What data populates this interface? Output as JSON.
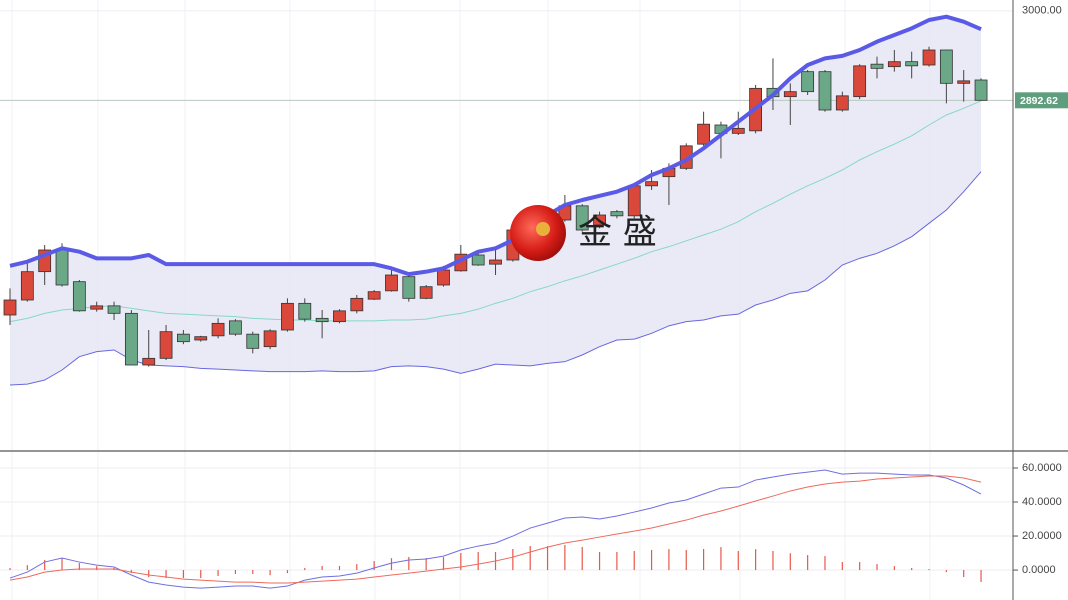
{
  "watermark": "金 盛",
  "chart_data": [
    {
      "type": "candlestick",
      "ylim": [
        2473,
        3013
      ],
      "yticks": [
        {
          "value": 3000,
          "label": "3000.00"
        }
      ],
      "last_price": {
        "value": 2892.62,
        "label": "2892.62"
      },
      "last_price_color": "#5e9e7e",
      "up_color": "#d9483b",
      "down_color": "#6aa888",
      "open": [
        2635,
        2653,
        2687,
        2713,
        2675,
        2642,
        2646,
        2637,
        2575,
        2583,
        2612,
        2605,
        2610,
        2628,
        2612,
        2597,
        2617,
        2649,
        2631,
        2627,
        2640,
        2654,
        2664,
        2681,
        2655,
        2671,
        2688,
        2707,
        2696,
        2701,
        2737,
        2755,
        2749,
        2766,
        2743,
        2759,
        2754,
        2790,
        2801,
        2811,
        2840,
        2863,
        2853,
        2856,
        2907,
        2897,
        2927,
        2927,
        2881,
        2897,
        2936,
        2933,
        2939,
        2935,
        2953,
        2913,
        2917
      ],
      "high": [
        2667,
        2699,
        2719,
        2721,
        2677,
        2651,
        2651,
        2641,
        2617,
        2623,
        2617,
        2610,
        2631,
        2630,
        2615,
        2618,
        2655,
        2655,
        2641,
        2642,
        2659,
        2665,
        2689,
        2685,
        2671,
        2694,
        2719,
        2711,
        2713,
        2742,
        2759,
        2761,
        2779,
        2768,
        2759,
        2761,
        2793,
        2809,
        2817,
        2841,
        2879,
        2867,
        2879,
        2911,
        2943,
        2913,
        2929,
        2929,
        2903,
        2936,
        2945,
        2953,
        2951,
        2957,
        2953,
        2929,
        2919
      ],
      "low": [
        2623,
        2651,
        2671,
        2669,
        2639,
        2639,
        2629,
        2575,
        2573,
        2581,
        2600,
        2603,
        2607,
        2610,
        2589,
        2594,
        2615,
        2627,
        2607,
        2625,
        2637,
        2653,
        2663,
        2651,
        2654,
        2669,
        2687,
        2694,
        2683,
        2699,
        2735,
        2747,
        2747,
        2735,
        2739,
        2751,
        2751,
        2785,
        2767,
        2809,
        2838,
        2823,
        2851,
        2853,
        2881,
        2863,
        2899,
        2879,
        2879,
        2894,
        2919,
        2927,
        2919,
        2933,
        2889,
        2891,
        2892
      ],
      "close": [
        2653,
        2687,
        2713,
        2671,
        2640,
        2646,
        2637,
        2575,
        2583,
        2615,
        2603,
        2609,
        2625,
        2612,
        2595,
        2616,
        2649,
        2630,
        2627,
        2640,
        2655,
        2663,
        2683,
        2655,
        2669,
        2689,
        2708,
        2695,
        2701,
        2737,
        2751,
        2751,
        2766,
        2737,
        2755,
        2754,
        2790,
        2795,
        2811,
        2838,
        2864,
        2853,
        2859,
        2907,
        2897,
        2903,
        2903,
        2881,
        2898,
        2934,
        2931,
        2939,
        2934,
        2953,
        2913,
        2916,
        2892.62
      ],
      "band_fill": "#e6e6f4",
      "series": [
        {
          "color": "#5a5ae6",
          "width": 4,
          "values": [
            2694,
            2699,
            2707,
            2715,
            2711,
            2703,
            2703,
            2703,
            2707,
            2696,
            2696,
            2696,
            2696,
            2696,
            2696,
            2696,
            2696,
            2696,
            2696,
            2696,
            2696,
            2696,
            2691,
            2684,
            2687,
            2691,
            2701,
            2711,
            2715,
            2725,
            2743,
            2755,
            2767,
            2773,
            2778,
            2783,
            2791,
            2803,
            2811,
            2821,
            2835,
            2851,
            2867,
            2883,
            2899,
            2919,
            2935,
            2943,
            2946,
            2953,
            2963,
            2971,
            2979,
            2989,
            2993,
            2987,
            2978
          ]
        },
        {
          "color": "#86d8c6",
          "width": 1,
          "values": [
            2627,
            2631,
            2637,
            2641,
            2643,
            2645,
            2646,
            2643,
            2640,
            2637,
            2636,
            2635,
            2634,
            2633,
            2631,
            2630,
            2629,
            2629,
            2628,
            2628,
            2628,
            2628,
            2629,
            2629,
            2630,
            2634,
            2637,
            2642,
            2649,
            2655,
            2663,
            2669,
            2676,
            2682,
            2689,
            2696,
            2703,
            2711,
            2717,
            2724,
            2731,
            2738,
            2747,
            2759,
            2769,
            2780,
            2790,
            2799,
            2809,
            2821,
            2831,
            2840,
            2850,
            2863,
            2875,
            2883,
            2892
          ]
        },
        {
          "color": "#6868e0",
          "width": 1,
          "values": [
            2551,
            2552,
            2557,
            2569,
            2585,
            2591,
            2593,
            2581,
            2575,
            2574,
            2573,
            2571,
            2570,
            2569,
            2568,
            2567,
            2567,
            2567,
            2568,
            2567,
            2567,
            2568,
            2573,
            2574,
            2573,
            2570,
            2565,
            2570,
            2576,
            2575,
            2574,
            2577,
            2579,
            2587,
            2597,
            2605,
            2606,
            2613,
            2622,
            2627,
            2629,
            2634,
            2636,
            2647,
            2653,
            2661,
            2664,
            2677,
            2695,
            2703,
            2709,
            2718,
            2729,
            2745,
            2761,
            2783,
            2807
          ]
        }
      ]
    },
    {
      "type": "macd",
      "ylim": [
        -17.6,
        69.4
      ],
      "yticks": [
        {
          "value": 60,
          "label": "60.0000"
        },
        {
          "value": 40,
          "label": "40.0000"
        },
        {
          "value": 20,
          "label": "20.0000"
        },
        {
          "value": 0,
          "label": "0.0000"
        }
      ],
      "histogram_color": "#e8574a",
      "histogram": [
        1.2,
        2.9,
        5.9,
        7.1,
        4.1,
        2.3,
        1.2,
        -1.7,
        -4.2,
        -4.7,
        -4.7,
        -4.7,
        -3.5,
        -2.3,
        -2.3,
        -3,
        -1.8,
        1.2,
        2.4,
        2.4,
        3.5,
        5.3,
        7,
        7.7,
        7.1,
        7.6,
        10,
        10.6,
        10.6,
        12.4,
        14.1,
        14.1,
        14.7,
        13.6,
        10.6,
        10.6,
        11.2,
        11.8,
        12.3,
        11.8,
        12.4,
        13.5,
        11.2,
        12.3,
        11.2,
        9.9,
        8.8,
        8.2,
        4.7,
        4.7,
        3.5,
        2.3,
        1.2,
        0.6,
        -1.2,
        -4.1,
        -7
      ],
      "series": [
        {
          "color": "#6f6fe0",
          "values": [
            -4.7,
            -1.2,
            4.7,
            7.1,
            4.7,
            2.9,
            1.8,
            -2.9,
            -7.1,
            -8.8,
            -10,
            -10.6,
            -10,
            -9.4,
            -9.4,
            -10.6,
            -9.4,
            -5.9,
            -4.1,
            -3.5,
            -1.8,
            1.2,
            4.1,
            5.9,
            6.5,
            8.2,
            11.8,
            14.1,
            15.9,
            20,
            24.7,
            27.6,
            30.6,
            31.2,
            30,
            31.8,
            34.1,
            36.5,
            39.4,
            41.2,
            44.7,
            48.2,
            48.8,
            52.9,
            54.7,
            56.4,
            57.6,
            58.8,
            56.4,
            57,
            57,
            56.4,
            55.9,
            55.9,
            54.1,
            50,
            44.7
          ]
        },
        {
          "color": "#ee6a5e",
          "values": [
            -5.9,
            -4.1,
            -1.2,
            0,
            0.6,
            0.6,
            0.6,
            -1.2,
            -2.9,
            -4.1,
            -5.3,
            -5.9,
            -6.5,
            -7.1,
            -7.1,
            -7.6,
            -7.6,
            -7.1,
            -6.5,
            -5.9,
            -5.3,
            -4.1,
            -2.9,
            -1.8,
            -0.6,
            0.6,
            1.8,
            3.5,
            5.3,
            7.6,
            10.6,
            13.5,
            15.9,
            17.6,
            19.4,
            21.2,
            22.9,
            24.7,
            27.1,
            29.4,
            32.3,
            34.7,
            37.6,
            40.6,
            43.5,
            46.5,
            48.8,
            50.6,
            51.7,
            52.3,
            53.5,
            54.1,
            54.7,
            55.3,
            55.3,
            54.1,
            51.7
          ]
        }
      ]
    }
  ]
}
